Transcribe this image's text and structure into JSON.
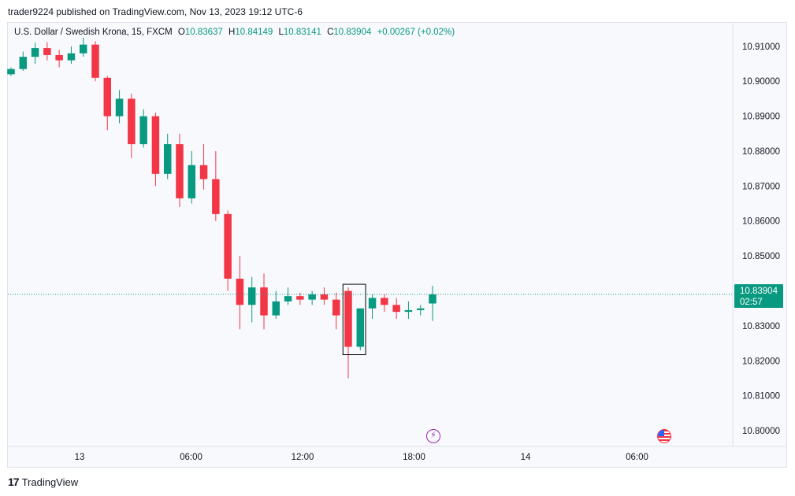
{
  "header": {
    "published_by": "trader9224 published on TradingView.com, Nov 13, 2023 19:12 UTC-6"
  },
  "legend": {
    "symbol": "U.S. Dollar / Swedish Krona, 15, FXCM",
    "open_label": "O",
    "open": "10.83637",
    "high_label": "H",
    "high": "10.84149",
    "low_label": "L",
    "low": "10.83141",
    "close_label": "C",
    "close": "10.83904",
    "change": "+0.00267 (+0.02%)"
  },
  "price_badge": {
    "price": "10.83904",
    "countdown": "02:57"
  },
  "footer": {
    "brand": "TradingView",
    "logo": "tradingview-logo"
  },
  "events": [
    {
      "icon": "lightning-icon"
    },
    {
      "icon": "us-flag-icon"
    }
  ],
  "colors": {
    "up": "#089981",
    "down": "#f23645",
    "highlight_box": "#000000",
    "last_price_line": "#089981"
  },
  "chart_data": {
    "type": "candlestick",
    "interval": "15",
    "ylim": [
      10.7955,
      10.9165
    ],
    "y_ticks": [
      "10.91000",
      "10.90000",
      "10.89000",
      "10.88000",
      "10.87000",
      "10.86000",
      "10.85000",
      "10.84000",
      "10.83000",
      "10.82000",
      "10.81000",
      "10.80000"
    ],
    "x_ticks": [
      "13",
      "06:00",
      "12:00",
      "18:00",
      "14",
      "06:00"
    ],
    "last_price": 10.83904,
    "highlight_candles": [
      28,
      29
    ],
    "candles": [
      [
        10.902,
        10.904,
        10.9015,
        10.9035
      ],
      [
        10.9035,
        10.9085,
        10.903,
        10.907
      ],
      [
        10.907,
        10.911,
        10.905,
        10.9095
      ],
      [
        10.9095,
        10.9112,
        10.906,
        10.9075
      ],
      [
        10.9075,
        10.909,
        10.904,
        10.906
      ],
      [
        10.906,
        10.91,
        10.905,
        10.908
      ],
      [
        10.908,
        10.9125,
        10.907,
        10.9105
      ],
      [
        10.9105,
        10.9115,
        10.9,
        10.901
      ],
      [
        10.901,
        10.9015,
        10.886,
        10.89
      ],
      [
        10.89,
        10.8975,
        10.888,
        10.895
      ],
      [
        10.895,
        10.8965,
        10.878,
        10.882
      ],
      [
        10.882,
        10.892,
        10.881,
        10.89
      ],
      [
        10.89,
        10.891,
        10.87,
        10.8735
      ],
      [
        10.8735,
        10.885,
        10.872,
        10.882
      ],
      [
        10.882,
        10.885,
        10.864,
        10.8665
      ],
      [
        10.8665,
        10.88,
        10.865,
        10.876
      ],
      [
        10.876,
        10.882,
        10.869,
        10.872
      ],
      [
        10.872,
        10.88,
        10.86,
        10.862
      ],
      [
        10.862,
        10.863,
        10.84,
        10.8435
      ],
      [
        10.8435,
        10.85,
        10.829,
        10.836
      ],
      [
        10.836,
        10.844,
        10.831,
        10.841
      ],
      [
        10.841,
        10.845,
        10.829,
        10.833
      ],
      [
        10.833,
        10.84,
        10.832,
        10.837
      ],
      [
        10.837,
        10.841,
        10.836,
        10.8385
      ],
      [
        10.8385,
        10.8395,
        10.836,
        10.8375
      ],
      [
        10.8375,
        10.84,
        10.836,
        10.839
      ],
      [
        10.839,
        10.841,
        10.836,
        10.8375
      ],
      [
        10.8375,
        10.8395,
        10.829,
        10.833
      ],
      [
        10.84,
        10.841,
        10.815,
        10.824
      ],
      [
        10.824,
        10.835,
        10.823,
        10.835
      ],
      [
        10.835,
        10.839,
        10.832,
        10.838
      ],
      [
        10.838,
        10.839,
        10.834,
        10.836
      ],
      [
        10.836,
        10.838,
        10.832,
        10.834
      ],
      [
        10.834,
        10.837,
        10.832,
        10.8345
      ],
      [
        10.8345,
        10.836,
        10.833,
        10.835
      ],
      [
        10.8364,
        10.8415,
        10.8314,
        10.839
      ]
    ]
  }
}
